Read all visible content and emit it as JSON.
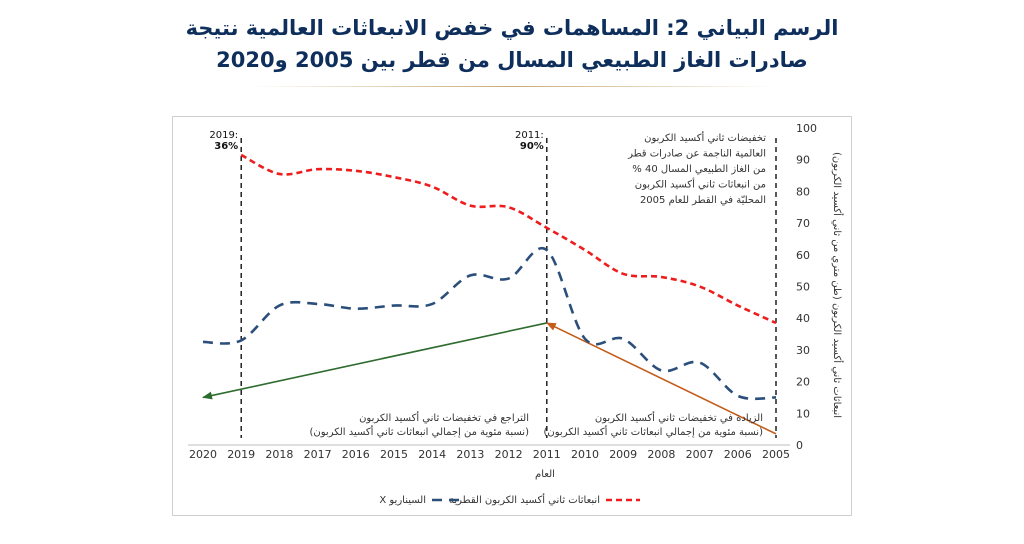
{
  "title_line1": "الرسم البياني 2: المساهمات في خفض الانبعاثات العالمية نتيجة",
  "title_line2": "صادرات الغاز الطبيعي المسال من قطر بين 2005 و2020",
  "colors": {
    "title": "#0e2e5c",
    "dashed_blue": "#2b4f7a",
    "dashed_red": "#ee1c1c",
    "green_arrow": "#2e6b2e",
    "orange_arrow": "#c45c1a"
  },
  "chart_data": {
    "type": "line",
    "xlabel": "العام",
    "ylabel": "انبعاثات ثاني أكسيد الكربون (طن متري من ثاني أكسيد الكربون)",
    "x_categories": [
      "2020",
      "2019",
      "2018",
      "2017",
      "2016",
      "2015",
      "2014",
      "2013",
      "2012",
      "2011",
      "2010",
      "2009",
      "2008",
      "2007",
      "2006",
      "2005"
    ],
    "x_axis_direction": "right-to-left",
    "y_axis_side": "right",
    "ylim": [
      0,
      100
    ],
    "y_ticks": [
      0,
      10,
      20,
      30,
      40,
      50,
      60,
      70,
      80,
      90,
      100
    ],
    "grid": false,
    "legend_position": "bottom",
    "series": [
      {
        "name": "انبعاثات ثاني أكسيد الكربون القطرية",
        "style": "dashed-red",
        "x": [
          "2019",
          "2018",
          "2017",
          "2016",
          "2015",
          "2014",
          "2013",
          "2012",
          "2011",
          "2010",
          "2009",
          "2008",
          "2007",
          "2006",
          "2005"
        ],
        "values": [
          91.5,
          85.5,
          87,
          86.5,
          84.5,
          81.5,
          75.5,
          75,
          68.5,
          61.5,
          54,
          53,
          50,
          44,
          38.5
        ]
      },
      {
        "name": "السيناريو X",
        "style": "dashed-blue",
        "x": [
          "2020",
          "2019",
          "2018",
          "2017",
          "2016",
          "2015",
          "2014",
          "2013",
          "2012",
          "2011",
          "2010",
          "2009",
          "2008",
          "2007",
          "2006",
          "2005"
        ],
        "values": [
          32.5,
          33,
          44,
          44.5,
          43,
          44,
          44.5,
          53.5,
          52.5,
          61.5,
          33.5,
          33.5,
          23.5,
          26,
          15.5,
          15
        ]
      }
    ],
    "vertical_markers": [
      {
        "x": "2019",
        "label": "2019:",
        "value_label": "36%"
      },
      {
        "x": "2011",
        "label": "2011:",
        "value_label": "90%"
      },
      {
        "x": "2005",
        "label": "",
        "value_label": ""
      }
    ],
    "arrows": [
      {
        "name": "green",
        "from": {
          "x": "2011",
          "y": 38.5
        },
        "to": {
          "x": "2020",
          "y": 15
        }
      },
      {
        "name": "orange",
        "from": {
          "x": "2005",
          "y": 3.5
        },
        "to": {
          "x": "2011",
          "y": 38.5
        }
      }
    ],
    "annotations": {
      "top_right": [
        "تخفيضات ثاني أكسيد الكربون",
        "العالمية الناجمة عن صادرات قطر",
        "من الغاز الطبيعي المسال 40 %",
        "من انبعاثات ثاني أكسيد الكربون",
        "المحليّة في القطر للعام 2005"
      ],
      "left_bottom": [
        "التراجع في تخفيضات ثاني أكسيد الكربون",
        "(نسبة مئوية من إجمالي انبعاثات ثاني أكسيد الكربون)"
      ],
      "right_bottom": [
        "الزيادة في تخفيضات ثاني أكسيد الكربون",
        "(نسبة مئوية من إجمالي انبعاثات ثاني أكسيد الكربون)"
      ]
    }
  }
}
